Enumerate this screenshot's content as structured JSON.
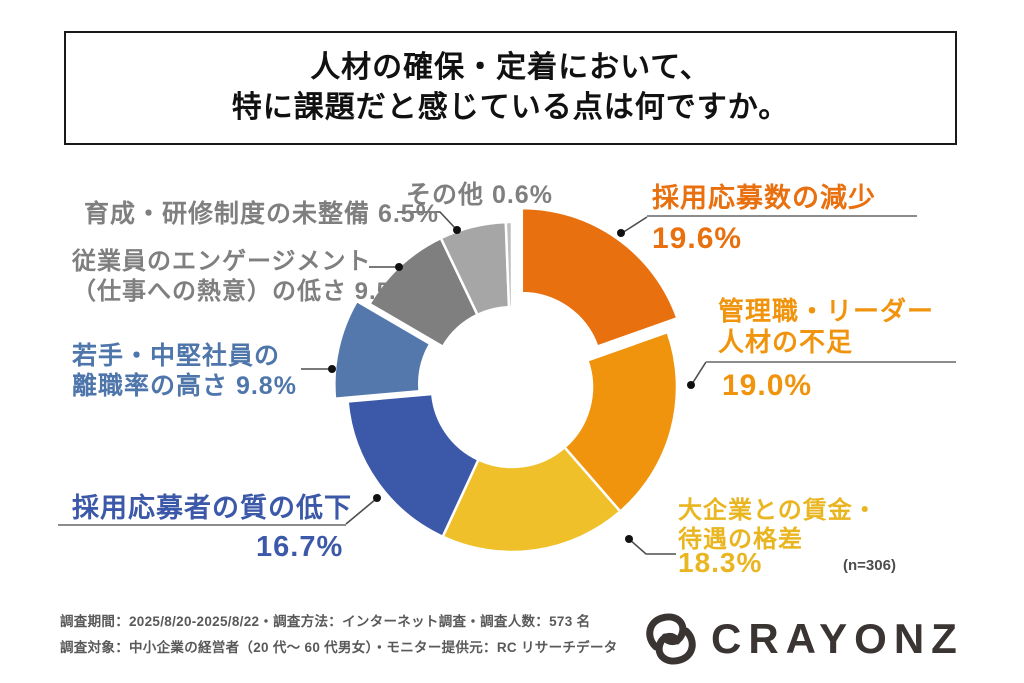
{
  "title": {
    "line1": "人材の確保・定着において、",
    "line2": "特に課題だと感じている点は何ですか。"
  },
  "chart_data": {
    "type": "pie",
    "variant": "donut",
    "start_angle_deg": 0,
    "direction": "clockwise",
    "unit": "%",
    "sample_size": 306,
    "segments": [
      {
        "label": "採用応募数の減少",
        "value": 19.6,
        "color": "#E8700F"
      },
      {
        "label": "管理職・リーダー人材の不足",
        "value": 19.0,
        "color": "#F0940E"
      },
      {
        "label": "大企業との賃金・待遇の格差",
        "value": 18.3,
        "color": "#EFC02A"
      },
      {
        "label": "採用応募者の質の低下",
        "value": 16.7,
        "color": "#3C58A8"
      },
      {
        "label": "若手・中堅社員の離職率の高さ",
        "value": 9.8,
        "color": "#5478AC"
      },
      {
        "label": "従業員のエンゲージメント（仕事への熱意）の低さ",
        "value": 9.5,
        "color": "#7F7F7F"
      },
      {
        "label": "育成・研修制度の未整備",
        "value": 6.5,
        "color": "#A6A6A6"
      },
      {
        "label": "その他",
        "value": 0.6,
        "color": "#BFBFBF"
      }
    ]
  },
  "callouts": {
    "recruit_decline": {
      "name": "採用応募数の減少",
      "value": "19.6%"
    },
    "manager_shortage": {
      "line1": "管理職・リーダー",
      "line2": "人材の不足",
      "value": "19.0%"
    },
    "wage_gap": {
      "line1": "大企業との賃金・",
      "line2": "待遇の格差",
      "value": "18.3%"
    },
    "sample_size": "(n=306)",
    "applicant_quality": {
      "name": "採用応募者の質の低下",
      "value": "16.7%"
    },
    "young_turnover": {
      "line1": "若手・中堅社員の",
      "line2": "離職率の高さ 9.8%"
    },
    "engagement": {
      "line1": "従業員のエンゲージメント",
      "line2": "（仕事への熱意）の低さ 9.5%"
    },
    "training": {
      "text": "育成・研修制度の未整備 6.5%"
    },
    "other": {
      "text": "その他 0.6%"
    }
  },
  "footer": {
    "line1": "調査期間：2025/8/20-2025/8/22・調査方法：インターネット調査・調査人数：573 名",
    "line2": "調査対象：中小企業の経営者（20 代〜 60 代男女）・モニター提供元：RC リサーチデータ"
  },
  "logo": {
    "text": "CRAYONZ"
  }
}
